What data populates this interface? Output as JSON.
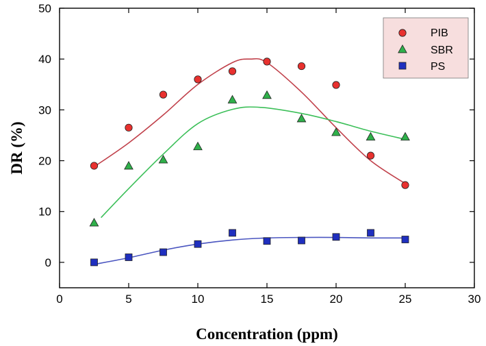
{
  "chart_data": {
    "type": "scatter",
    "title": "",
    "xlabel": "Concentration (ppm)",
    "ylabel": "DR (%)",
    "xlim": [
      0,
      30
    ],
    "ylim": [
      -5,
      50
    ],
    "xticks": [
      0,
      5,
      10,
      15,
      20,
      25,
      30
    ],
    "yticks": [
      0,
      10,
      20,
      30,
      40,
      50
    ],
    "grid": false,
    "legend_position": "top-right",
    "series": [
      {
        "name": "PIB",
        "marker": "circle",
        "color": "#e8312f",
        "line_color": "#c0404a",
        "x": [
          2.5,
          5,
          7.5,
          10,
          12.5,
          15,
          17.5,
          20,
          22.5,
          25
        ],
        "y": [
          19,
          26.5,
          33,
          36,
          37.6,
          39.5,
          38.6,
          34.9,
          21,
          15.2
        ],
        "fit_x": [
          2.5,
          5,
          7.5,
          10,
          12.5,
          13.8,
          15,
          17.5,
          20,
          22.5,
          25
        ],
        "fit_y": [
          18.8,
          23.5,
          29,
          35,
          39.3,
          40,
          39.3,
          33.5,
          26.5,
          20,
          15.5
        ]
      },
      {
        "name": "SBR",
        "marker": "triangle",
        "color": "#2fb04a",
        "line_color": "#3bbf58",
        "x": [
          2.5,
          5,
          7.5,
          10,
          12.5,
          15,
          17.5,
          20,
          22.5,
          25
        ],
        "y": [
          7.8,
          19,
          20.2,
          22.8,
          32,
          32.9,
          28.3,
          25.6,
          24.7,
          24.7
        ],
        "fit_x": [
          3,
          5,
          7.5,
          10,
          12.5,
          14.5,
          17.5,
          20,
          22.5,
          25
        ],
        "fit_y": [
          8.8,
          14.5,
          21.3,
          27.3,
          30.1,
          30.5,
          29.3,
          27.7,
          25.8,
          24.2
        ]
      },
      {
        "name": "PS",
        "marker": "square",
        "color": "#1f2fbf",
        "line_color": "#4a55c0",
        "x": [
          2.5,
          5,
          7.5,
          10,
          12.5,
          15,
          17.5,
          20,
          22.5,
          25
        ],
        "y": [
          0,
          1,
          2,
          3.6,
          5.8,
          4.2,
          4.3,
          5,
          5.8,
          4.5
        ],
        "fit_x": [
          2.5,
          5,
          7.5,
          10,
          12.5,
          15,
          17.5,
          20,
          22.5,
          25
        ],
        "fit_y": [
          -0.4,
          0.9,
          2.4,
          3.6,
          4.4,
          4.8,
          4.9,
          4.9,
          4.8,
          4.8
        ]
      }
    ]
  }
}
